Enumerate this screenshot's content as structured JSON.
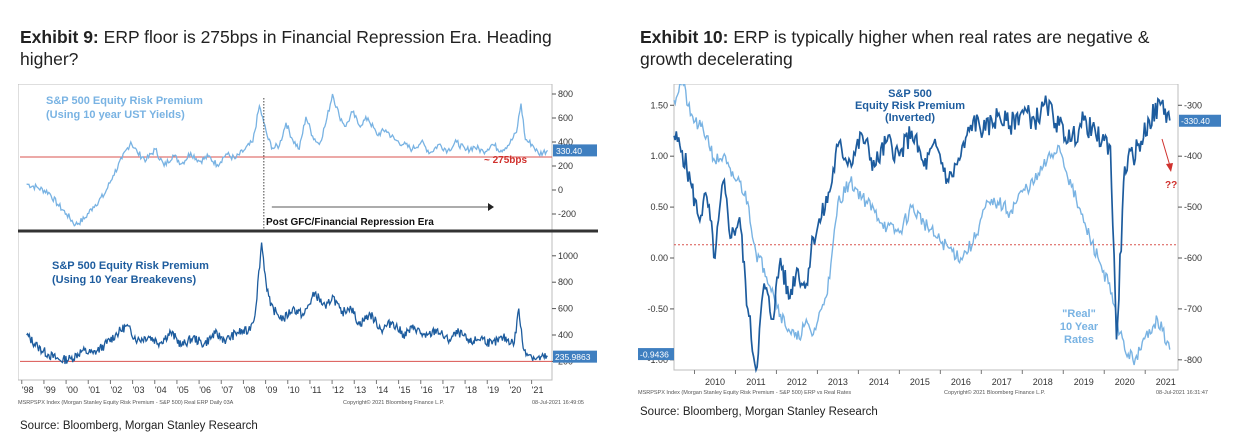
{
  "exhibit9": {
    "number": "Exhibit 9:",
    "title": "ERP floor is 275bps in Financial Repression Era. Heading higher?",
    "title_line1": "ERP floor is 275bps in Financial Repression Era. Heading",
    "title_line2": "higher?",
    "source": "Source: Bloomberg, Morgan Stanley Research",
    "footer_left": "MSRPSPX Index (Morgan Stanley Equity Risk Premium - S&P 500) Real ERP  Daily 03A",
    "footer_mid": "Copyright© 2021 Bloomberg Finance L.P.",
    "footer_right": "08-Jul-2021 16:49:05"
  },
  "exhibit10": {
    "number": "Exhibit 10:",
    "title": "ERP is typically higher when real rates are negative & growth decelerating",
    "title_line1": "ERP is typically higher when real rates are negative &",
    "title_line2": "growth decelerating",
    "source": "Source: Bloomberg, Morgan Stanley Research",
    "footer_left": "MSRPSPX Index (Morgan Stanley Equity Risk Premium - S&P 500) ERP vs Real Rates",
    "footer_mid": "Copyright© 2021 Bloomberg Finance L.P.",
    "footer_right": "08-Jul-2021 16:31:47"
  },
  "colors": {
    "light_blue": "#79b3e3",
    "dark_blue": "#1d5c9e",
    "red_line": "#d9534f",
    "annotation_red": "#d0312d",
    "box_blue": "#3f7fc0"
  },
  "chart_data": [
    {
      "type": "line",
      "panel": "exhibit9-top",
      "series": [
        {
          "name": "S&P 500 Equity Risk Premium (Using 10 year UST Yields)",
          "name_line1": "S&P 500 Equity Risk Premium",
          "name_line2": "(Using 10 year UST Yields)",
          "x": [
            1998.0,
            1998.5,
            1999.0,
            1999.4,
            1999.8,
            2000.2,
            2000.6,
            2001.0,
            2001.5,
            2001.9,
            2002.3,
            2002.7,
            2003.0,
            2003.4,
            2003.8,
            2004.2,
            2004.6,
            2005.0,
            2005.4,
            2005.8,
            2006.2,
            2006.6,
            2007.0,
            2007.4,
            2007.8,
            2008.2,
            2008.5,
            2008.7,
            2008.9,
            2009.1,
            2009.4,
            2009.7,
            2010.0,
            2010.3,
            2010.6,
            2010.9,
            2011.2,
            2011.5,
            2011.8,
            2012.1,
            2012.4,
            2012.7,
            2013.0,
            2013.4,
            2013.8,
            2014.2,
            2014.6,
            2015.0,
            2015.4,
            2015.8,
            2016.2,
            2016.6,
            2017.0,
            2017.4,
            2017.8,
            2018.2,
            2018.6,
            2019.0,
            2019.4,
            2019.8,
            2020.1,
            2020.3,
            2020.5,
            2020.8,
            2021.1,
            2021.5
          ],
          "values": [
            50,
            20,
            -20,
            -120,
            -200,
            -290,
            -240,
            -140,
            -40,
            120,
            260,
            400,
            310,
            250,
            340,
            200,
            290,
            220,
            310,
            240,
            280,
            210,
            300,
            260,
            330,
            400,
            700,
            560,
            420,
            350,
            370,
            560,
            420,
            340,
            610,
            450,
            380,
            560,
            800,
            620,
            530,
            650,
            540,
            600,
            460,
            500,
            420,
            380,
            340,
            400,
            310,
            380,
            330,
            400,
            330,
            360,
            320,
            380,
            330,
            390,
            480,
            720,
            420,
            380,
            300,
            330
          ]
        }
      ],
      "y_ticks": [
        800,
        600,
        400,
        200,
        0,
        -200
      ],
      "ylim": [
        -300,
        850
      ],
      "reference_line": 275,
      "reference_label": "~ 275bps",
      "last_value_label": "330.40",
      "annotation": "Post GFC/Financial Repression Era"
    },
    {
      "type": "line",
      "panel": "exhibit9-bottom",
      "series": [
        {
          "name": "S&P 500 Equity Risk Premium (Using 10 Year Breakevens)",
          "name_line1": "S&P 500 Equity Risk Premium",
          "name_line2": "(Using 10 Year Breakevens)",
          "x": [
            1998.0,
            1998.5,
            1999.0,
            1999.5,
            2000.0,
            2000.5,
            2001.0,
            2001.5,
            2002.0,
            2002.5,
            2003.0,
            2003.5,
            2004.0,
            2004.5,
            2005.0,
            2005.5,
            2006.0,
            2006.5,
            2007.0,
            2007.5,
            2008.0,
            2008.3,
            2008.6,
            2008.8,
            2009.0,
            2009.3,
            2009.6,
            2010.0,
            2010.5,
            2011.0,
            2011.5,
            2011.8,
            2012.2,
            2012.6,
            2013.0,
            2013.5,
            2014.0,
            2014.5,
            2015.0,
            2015.5,
            2016.0,
            2016.5,
            2017.0,
            2017.5,
            2018.0,
            2018.5,
            2019.0,
            2019.5,
            2020.0,
            2020.2,
            2020.4,
            2020.7,
            2021.0,
            2021.5
          ],
          "values": [
            400,
            310,
            250,
            210,
            220,
            280,
            260,
            320,
            400,
            470,
            360,
            390,
            340,
            420,
            320,
            380,
            330,
            410,
            360,
            420,
            430,
            550,
            1100,
            800,
            620,
            560,
            520,
            600,
            550,
            720,
            600,
            700,
            560,
            620,
            480,
            560,
            440,
            500,
            400,
            460,
            380,
            440,
            360,
            420,
            340,
            380,
            330,
            380,
            340,
            600,
            300,
            250,
            220,
            236
          ]
        }
      ],
      "y_ticks": [
        1000,
        800,
        600,
        400,
        200
      ],
      "ylim": [
        150,
        1150
      ],
      "reference_line": 200,
      "last_value_label": "235.9863",
      "x_ticks": [
        "'98",
        "'99",
        "'00",
        "'01",
        "'02",
        "'03",
        "'04",
        "'05",
        "'06",
        "'07",
        "'08",
        "'09",
        "'10",
        "'11",
        "'12",
        "'13",
        "'14",
        "'15",
        "'16",
        "'17",
        "'18",
        "'19",
        "'20",
        "'21"
      ]
    },
    {
      "type": "line",
      "panel": "exhibit10",
      "series": [
        {
          "name": "S&P 500 Equity Risk Premium (Inverted)",
          "name_line1": "S&P 500",
          "name_line2": "Equity Risk Premium",
          "name_line3": "(Inverted)",
          "axis": "right-inverted",
          "x": [
            2009.5,
            2009.7,
            2009.9,
            2010.1,
            2010.3,
            2010.5,
            2010.7,
            2010.9,
            2011.1,
            2011.3,
            2011.5,
            2011.7,
            2011.9,
            2012.1,
            2012.3,
            2012.5,
            2012.7,
            2012.9,
            2013.1,
            2013.3,
            2013.5,
            2013.8,
            2014.1,
            2014.4,
            2014.7,
            2015.0,
            2015.3,
            2015.6,
            2015.9,
            2016.2,
            2016.5,
            2016.8,
            2017.1,
            2017.4,
            2017.7,
            2018.0,
            2018.3,
            2018.6,
            2018.9,
            2019.2,
            2019.5,
            2019.8,
            2020.0,
            2020.15,
            2020.3,
            2020.5,
            2020.7,
            2020.9,
            2021.1,
            2021.4,
            2021.6
          ],
          "values": [
            -360,
            -390,
            -450,
            -520,
            -480,
            -600,
            -450,
            -560,
            -520,
            -700,
            -820,
            -650,
            -720,
            -600,
            -680,
            -620,
            -660,
            -560,
            -520,
            -470,
            -380,
            -410,
            -360,
            -420,
            -370,
            -400,
            -350,
            -420,
            -380,
            -450,
            -400,
            -330,
            -350,
            -320,
            -340,
            -310,
            -330,
            -300,
            -340,
            -370,
            -330,
            -360,
            -370,
            -380,
            -760,
            -420,
            -400,
            -370,
            -330,
            -295,
            -330
          ]
        },
        {
          "name": "\"Real\" 10 Year Rates",
          "name_line1": "\"Real\"",
          "name_line2": "10 Year",
          "name_line3": "Rates",
          "axis": "left",
          "x": [
            2009.5,
            2009.7,
            2009.9,
            2010.1,
            2010.3,
            2010.5,
            2010.7,
            2010.9,
            2011.1,
            2011.3,
            2011.5,
            2011.7,
            2011.9,
            2012.1,
            2012.3,
            2012.5,
            2012.7,
            2012.9,
            2013.1,
            2013.3,
            2013.5,
            2013.8,
            2014.1,
            2014.4,
            2014.7,
            2015.0,
            2015.3,
            2015.6,
            2015.9,
            2016.2,
            2016.5,
            2016.8,
            2017.1,
            2017.4,
            2017.7,
            2018.0,
            2018.3,
            2018.6,
            2018.9,
            2019.2,
            2019.5,
            2019.7,
            2019.9,
            2020.1,
            2020.3,
            2020.5,
            2020.7,
            2020.9,
            2021.1,
            2021.3,
            2021.6
          ],
          "values": [
            1.55,
            1.75,
            1.4,
            1.3,
            1.2,
            0.95,
            1.0,
            0.8,
            0.75,
            0.55,
            0.05,
            -0.1,
            -0.3,
            -0.55,
            -0.7,
            -0.8,
            -0.65,
            -0.75,
            -0.5,
            -0.2,
            0.55,
            0.75,
            0.6,
            0.45,
            0.3,
            0.25,
            0.5,
            0.35,
            0.2,
            0.1,
            0.0,
            0.15,
            0.5,
            0.55,
            0.45,
            0.65,
            0.75,
            0.95,
            1.1,
            0.7,
            0.35,
            0.15,
            -0.05,
            -0.25,
            -0.6,
            -0.9,
            -1.0,
            -0.9,
            -0.7,
            -0.6,
            -0.9
          ]
        }
      ],
      "left_ticks": [
        1.5,
        1.0,
        0.5,
        0.0,
        -0.5,
        -1.0
      ],
      "left_tick_labels": [
        "1.50",
        "1.00",
        "0.50",
        "0.00",
        "-0.50",
        "-1.00"
      ],
      "ylim_left": [
        -1.1,
        1.65
      ],
      "right_ticks": [
        -300,
        -400,
        -500,
        -600,
        -700,
        -800
      ],
      "ylim_right": [
        -820,
        -270
      ],
      "reference_line": 0.13,
      "last_value_label_left": "-0.9436",
      "last_value_label_right": "-330.40",
      "annotation": "??",
      "x_ticks": [
        "2010",
        "2011",
        "2012",
        "2013",
        "2014",
        "2015",
        "2016",
        "2017",
        "2018",
        "2019",
        "2020",
        "2021"
      ]
    }
  ]
}
